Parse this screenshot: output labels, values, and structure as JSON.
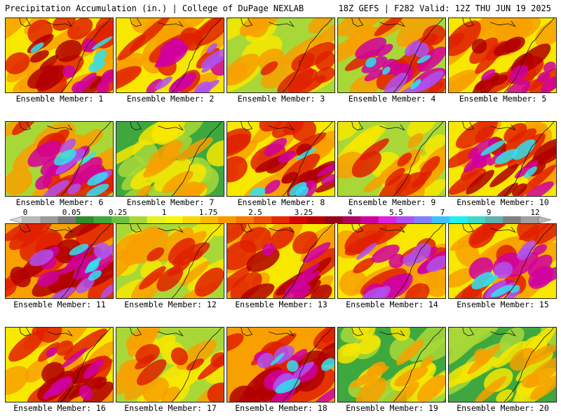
{
  "header": {
    "left": "Precipitation Accumulation (in.) | College of DuPage NEXLAB",
    "right": "18Z GEFS | F282 Valid: 12Z THU JUN 19 2025"
  },
  "panel_label_prefix": "Ensemble Member: ",
  "members": [
    {
      "label": "Ensemble Member: 1",
      "tone": "wet-band-east"
    },
    {
      "label": "Ensemble Member: 2",
      "tone": "wet-north"
    },
    {
      "label": "Ensemble Member: 3",
      "tone": "moderate"
    },
    {
      "label": "Ensemble Member: 4",
      "tone": "wet-south"
    },
    {
      "label": "Ensemble Member: 5",
      "tone": "moderate-wet"
    },
    {
      "label": "Ensemble Member: 6",
      "tone": "wet-south"
    },
    {
      "label": "Ensemble Member: 7",
      "tone": "dry"
    },
    {
      "label": "Ensemble Member: 8",
      "tone": "wet-band-east"
    },
    {
      "label": "Ensemble Member: 9",
      "tone": "moderate"
    },
    {
      "label": "Ensemble Member: 10",
      "tone": "wet-band-east"
    },
    {
      "label": "Ensemble Member: 11",
      "tone": "very-wet"
    },
    {
      "label": "Ensemble Member: 12",
      "tone": "moderate"
    },
    {
      "label": "Ensemble Member: 13",
      "tone": "moderate-wet"
    },
    {
      "label": "Ensemble Member: 14",
      "tone": "wet-north"
    },
    {
      "label": "Ensemble Member: 15",
      "tone": "wet-west"
    },
    {
      "label": "Ensemble Member: 16",
      "tone": "moderate-wet"
    },
    {
      "label": "Ensemble Member: 17",
      "tone": "moderate"
    },
    {
      "label": "Ensemble Member: 18",
      "tone": "very-wet"
    },
    {
      "label": "Ensemble Member: 19",
      "tone": "dry"
    },
    {
      "label": "Ensemble Member: 20",
      "tone": "dry"
    }
  ],
  "colorbar": {
    "labels": [
      "0",
      "0.05",
      "0.25",
      "1",
      "1.75",
      "2.5",
      "3.25",
      "4",
      "5.5",
      "7",
      "9",
      "12"
    ],
    "colors": [
      "#d8d8d8",
      "#b8b8b8",
      "#9a9a9a",
      "#7a7a7a",
      "#2e8b2e",
      "#3ea83e",
      "#6cc040",
      "#a8d838",
      "#e8f020",
      "#f8f800",
      "#f8d800",
      "#f8b800",
      "#f89800",
      "#f87800",
      "#f05000",
      "#e82800",
      "#d80000",
      "#b80000",
      "#980018",
      "#b00060",
      "#d000a0",
      "#e020e0",
      "#b050f0",
      "#8080ff",
      "#40c0ff",
      "#20f0f0",
      "#40d8c8",
      "#60b0b0",
      "#808080",
      "#a0a0a0",
      "#b8b8b8"
    ]
  },
  "palette": {
    "green": "#3ea83e",
    "lightgreen": "#a8d838",
    "yellow": "#f8e800",
    "orange": "#f8a000",
    "red": "#e02000",
    "darkred": "#b00000",
    "magenta": "#d000a0",
    "purple": "#b050f0",
    "cyan": "#30e0f0"
  }
}
